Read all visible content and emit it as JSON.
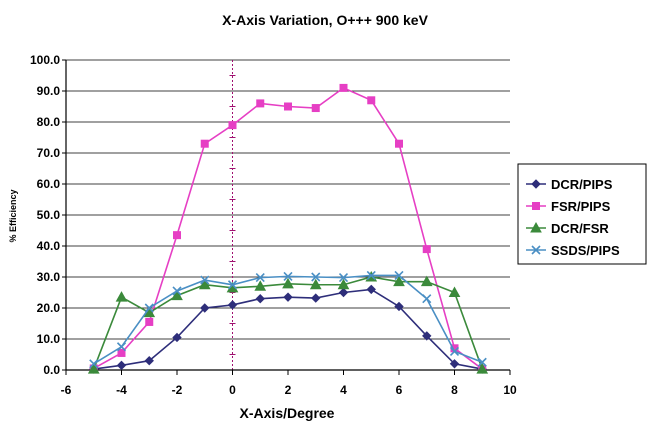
{
  "chart_data": {
    "type": "line",
    "title": "X-Axis Variation, O+++ 900 keV",
    "xlabel": "X-Axis/Degree",
    "ylabel": "% Efficiency",
    "xlim": [
      -6,
      10
    ],
    "ylim": [
      0,
      100
    ],
    "x_ticks": [
      "-6",
      "-4",
      "-2",
      "0",
      "2",
      "4",
      "6",
      "8",
      "10"
    ],
    "y_ticks": [
      "0.0",
      "10.0",
      "20.0",
      "30.0",
      "40.0",
      "50.0",
      "60.0",
      "70.0",
      "80.0",
      "90.0",
      "100.0"
    ],
    "grid": true,
    "legend_position": "right",
    "x": [
      -5,
      -4,
      -3,
      -2,
      -1,
      0,
      1,
      2,
      3,
      4,
      5,
      6,
      7,
      8,
      9
    ],
    "series": [
      {
        "name": "DCR/PIPS",
        "color": "#2e2e7a",
        "marker": "diamond",
        "values": [
          0.3,
          1.5,
          3.0,
          10.5,
          20.0,
          21.0,
          23.0,
          23.5,
          23.2,
          25.0,
          26.0,
          20.5,
          11.0,
          2.0,
          0.3
        ]
      },
      {
        "name": "FSR/PIPS",
        "color": "#e63fc4",
        "marker": "square",
        "values": [
          0.5,
          5.5,
          15.5,
          43.5,
          73.0,
          79.0,
          86.0,
          85.0,
          84.5,
          91.0,
          87.0,
          73.0,
          39.0,
          7.0,
          0.3
        ]
      },
      {
        "name": "DCR/FSR",
        "color": "#3b8a3b",
        "marker": "triangle",
        "values": [
          0.3,
          23.5,
          18.5,
          24.0,
          27.5,
          26.5,
          27.0,
          27.8,
          27.5,
          27.5,
          30.0,
          28.5,
          28.5,
          25.0,
          0.3
        ]
      },
      {
        "name": "SSDS/PIPS",
        "color": "#4a8fc4",
        "marker": "x",
        "values": [
          2.0,
          7.5,
          20.0,
          25.5,
          29.0,
          27.5,
          29.8,
          30.2,
          30.0,
          29.8,
          30.5,
          30.5,
          23.0,
          6.0,
          2.5
        ]
      }
    ]
  }
}
